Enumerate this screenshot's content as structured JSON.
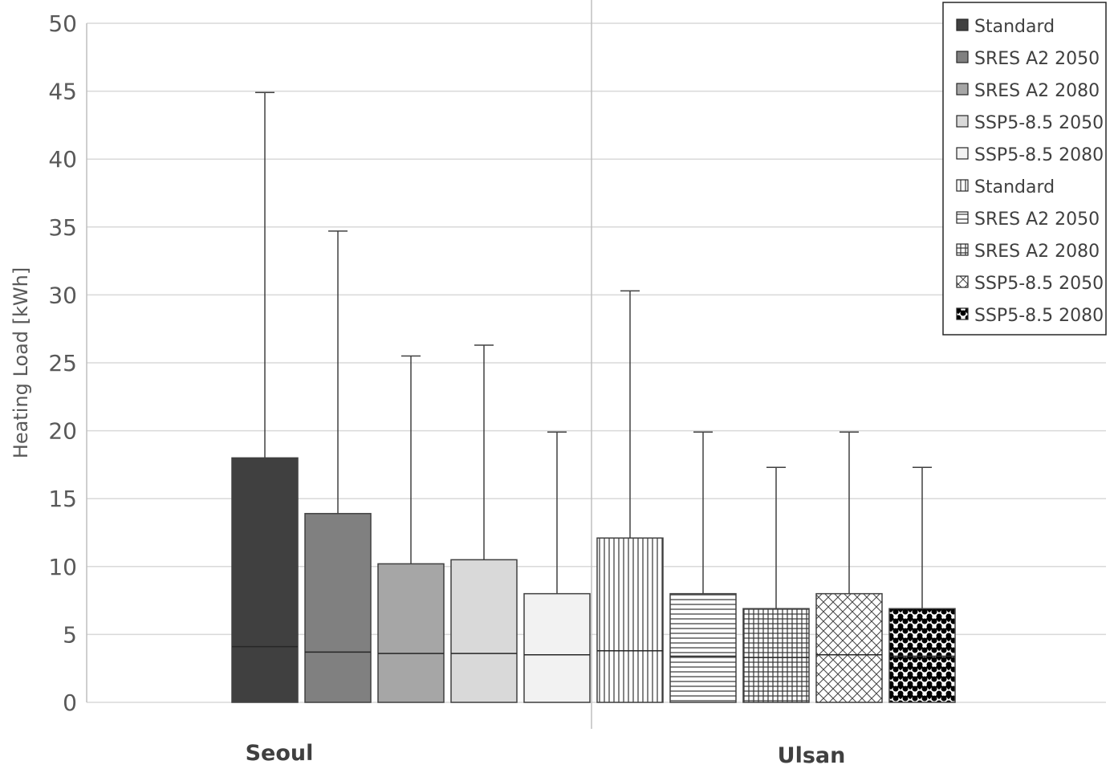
{
  "chart_data": {
    "type": "bar",
    "subtype": "box-whisker",
    "title": "",
    "xlabel": "",
    "ylabel": "Heating Load [kWh]",
    "ylim": [
      0,
      50
    ],
    "yticks": [
      0,
      5,
      10,
      15,
      20,
      25,
      30,
      35,
      40,
      45,
      50
    ],
    "grid": true,
    "legend_position": "top-right",
    "groups": [
      {
        "name": "Seoul",
        "series": [
          {
            "name": "Standard",
            "fill": "#404040",
            "pattern": "solid",
            "min": 0,
            "median": 4.1,
            "q3": 18.0,
            "max": 44.9
          },
          {
            "name": "SRES A2 2050",
            "fill": "#808080",
            "pattern": "solid",
            "min": 0,
            "median": 3.7,
            "q3": 13.9,
            "max": 34.7
          },
          {
            "name": "SRES A2 2080",
            "fill": "#a6a6a6",
            "pattern": "solid",
            "min": 0,
            "median": 3.6,
            "q3": 10.2,
            "max": 25.5
          },
          {
            "name": "SSP5-8.5 2050",
            "fill": "#d9d9d9",
            "pattern": "solid",
            "min": 0,
            "median": 3.6,
            "q3": 10.5,
            "max": 26.3
          },
          {
            "name": "SSP5-8.5 2080",
            "fill": "#f2f2f2",
            "pattern": "solid",
            "min": 0,
            "median": 3.5,
            "q3": 8.0,
            "max": 19.9
          }
        ]
      },
      {
        "name": "Ulsan",
        "series": [
          {
            "name": "Standard",
            "fill": "#ffffff",
            "pattern": "vertical",
            "min": 0,
            "median": 3.8,
            "q3": 12.1,
            "max": 30.3
          },
          {
            "name": "SRES A2 2050",
            "fill": "#ffffff",
            "pattern": "horizontal",
            "min": 0,
            "median": 3.4,
            "q3": 8.0,
            "max": 19.9
          },
          {
            "name": "SRES A2 2080",
            "fill": "#ffffff",
            "pattern": "grid",
            "min": 0,
            "median": 3.3,
            "q3": 6.9,
            "max": 17.3
          },
          {
            "name": "SSP5-8.5 2050",
            "fill": "#ffffff",
            "pattern": "crosshatch",
            "min": 0,
            "median": 3.5,
            "q3": 8.0,
            "max": 19.9
          },
          {
            "name": "SSP5-8.5 2080",
            "fill": "#ffffff",
            "pattern": "dots",
            "min": 0,
            "median": 3.4,
            "q3": 6.9,
            "max": 17.3
          }
        ]
      }
    ],
    "colors": {
      "gridline": "#d9d9d9",
      "outline": "#404040",
      "whisker": "#404040"
    }
  }
}
